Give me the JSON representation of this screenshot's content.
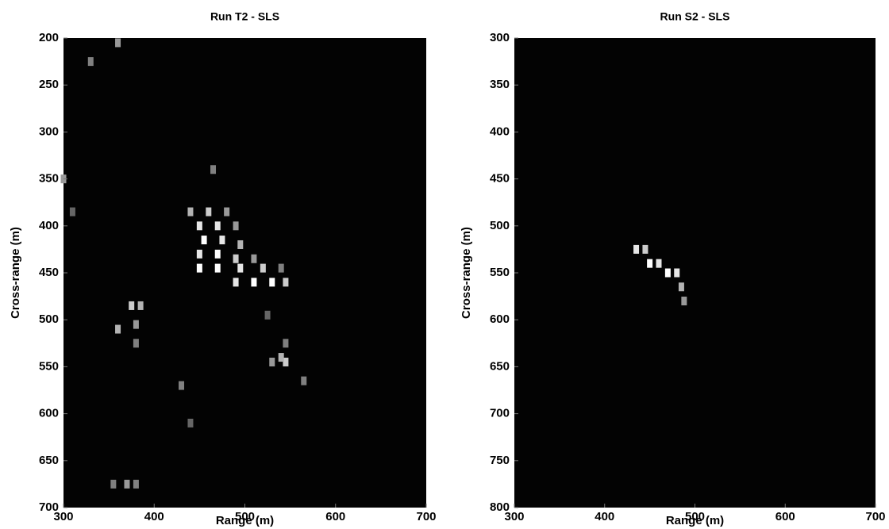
{
  "chart_data": [
    {
      "type": "image",
      "title": "Run T2 - SLS",
      "xlabel": "Range (m)",
      "ylabel": "Cross-range (m)",
      "xlim": [
        300,
        700
      ],
      "ylim": [
        700,
        200
      ],
      "xticks": [
        300,
        400,
        500,
        600,
        700
      ],
      "yticks": [
        200,
        250,
        300,
        350,
        400,
        450,
        500,
        550,
        600,
        650,
        700
      ],
      "x": [
        440,
        460,
        480,
        450,
        470,
        490,
        455,
        475,
        495,
        450,
        470,
        490,
        510,
        450,
        470,
        495,
        520,
        540,
        490,
        510,
        530,
        545,
        465,
        375,
        385,
        360,
        380,
        380,
        530,
        545,
        565,
        430,
        370,
        355,
        380,
        360,
        330,
        300,
        310,
        440,
        540,
        545,
        525
      ],
      "y": [
        385,
        385,
        385,
        400,
        400,
        400,
        415,
        415,
        420,
        430,
        430,
        435,
        435,
        445,
        445,
        445,
        445,
        445,
        460,
        460,
        460,
        460,
        340,
        485,
        485,
        510,
        505,
        525,
        545,
        545,
        565,
        570,
        675,
        675,
        675,
        205,
        225,
        350,
        385,
        610,
        540,
        525,
        495
      ],
      "values": [
        0.7,
        0.8,
        0.6,
        0.9,
        0.9,
        0.6,
        1,
        0.9,
        0.7,
        0.9,
        1,
        0.8,
        0.6,
        1,
        1,
        0.9,
        0.8,
        0.5,
        0.9,
        1,
        1,
        0.8,
        0.5,
        0.8,
        0.7,
        0.7,
        0.6,
        0.5,
        0.6,
        0.8,
        0.5,
        0.5,
        0.6,
        0.5,
        0.5,
        0.6,
        0.5,
        0.6,
        0.4,
        0.4,
        0.7,
        0.5,
        0.4
      ]
    },
    {
      "type": "image",
      "title": "Run S2 - SLS",
      "xlabel": "Range (m)",
      "ylabel": "Cross-range (m)",
      "xlim": [
        300,
        700
      ],
      "ylim": [
        800,
        300
      ],
      "xticks": [
        300,
        400,
        500,
        600,
        700
      ],
      "yticks": [
        300,
        350,
        400,
        450,
        500,
        550,
        600,
        650,
        700,
        750,
        800
      ],
      "x": [
        435,
        445,
        450,
        460,
        470,
        480,
        485,
        488
      ],
      "y": [
        525,
        525,
        540,
        540,
        550,
        550,
        565,
        580
      ],
      "values": [
        0.9,
        0.8,
        1,
        0.9,
        1,
        0.9,
        0.7,
        0.6
      ]
    }
  ]
}
